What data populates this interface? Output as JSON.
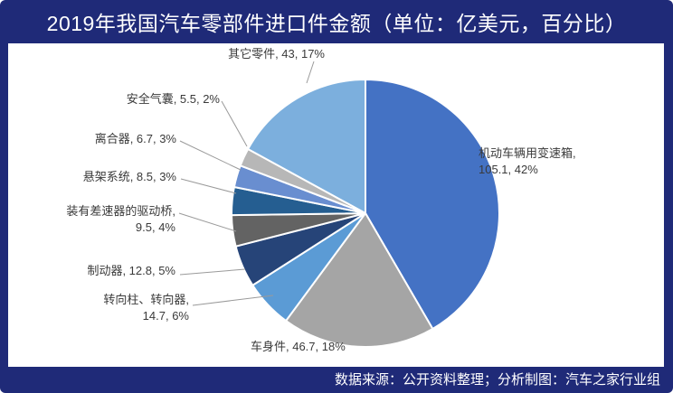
{
  "header": {
    "title": "2019年我国汽车零部件进口件金额（单位：亿美元，百分比）"
  },
  "footer": {
    "source": "数据来源：公开资料整理；分析制图：汽车之家行业组"
  },
  "colors": {
    "background": "#1f2a78",
    "panel": "#ffffff",
    "leader": "#9a9a9a"
  },
  "chart_data": {
    "type": "pie",
    "title": "2019年我国汽车零部件进口件金额（单位：亿美元，百分比）",
    "unit": "亿美元",
    "slices": [
      {
        "name": "机动车辆用变速箱",
        "value": 105.1,
        "percent": 42,
        "color": "#4472c4",
        "label_lines": [
          "机动车辆用变速箱,",
          "105.1, 42%"
        ]
      },
      {
        "name": "车身件",
        "value": 46.7,
        "percent": 18,
        "color": "#a5a5a5",
        "label_lines": [
          "车身件, 46.7, 18%"
        ]
      },
      {
        "name": "转向柱、转向器",
        "value": 14.7,
        "percent": 6,
        "color": "#5b9bd5",
        "label_lines": [
          "转向柱、转向器,",
          "14.7, 6%"
        ]
      },
      {
        "name": "制动器",
        "value": 12.8,
        "percent": 5,
        "color": "#264478",
        "label_lines": [
          "制动器, 12.8, 5%"
        ]
      },
      {
        "name": "装有差速器的驱动桥",
        "value": 9.5,
        "percent": 4,
        "color": "#636363",
        "label_lines": [
          "装有差速器的驱动桥,",
          "9.5, 4%"
        ]
      },
      {
        "name": "悬架系统",
        "value": 8.5,
        "percent": 3,
        "color": "#255e91",
        "label_lines": [
          "悬架系统, 8.5, 3%"
        ]
      },
      {
        "name": "离合器",
        "value": 6.7,
        "percent": 3,
        "color": "#698ed0",
        "label_lines": [
          "离合器, 6.7, 3%"
        ]
      },
      {
        "name": "安全气囊",
        "value": 5.5,
        "percent": 2,
        "color": "#b7b7b7",
        "label_lines": [
          "安全气囊, 5.5, 2%"
        ]
      },
      {
        "name": "其它零件",
        "value": 43,
        "percent": 17,
        "color": "#7cafdd",
        "label_lines": [
          "其它零件, 43, 17%"
        ]
      }
    ]
  }
}
